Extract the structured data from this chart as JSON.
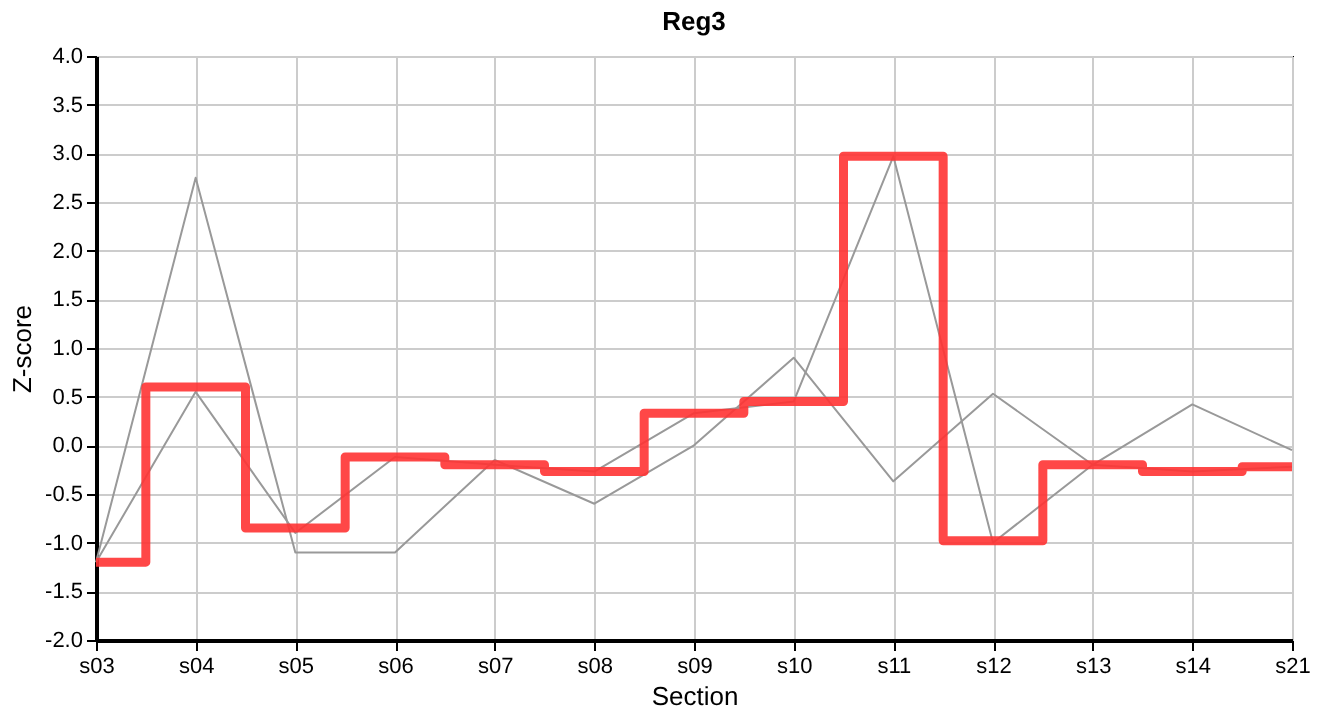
{
  "chart_data": {
    "type": "line",
    "title": "Reg3",
    "xlabel": "Section",
    "ylabel": "Z-score",
    "categories": [
      "s03",
      "s04",
      "s05",
      "s06",
      "s07",
      "s08",
      "s09",
      "s10",
      "s11",
      "s12",
      "s13",
      "s14",
      "s21"
    ],
    "series": [
      {
        "color": "#999999",
        "values": [
          -1.2,
          2.75,
          -1.1,
          -1.1,
          -0.15,
          -0.6,
          0.0,
          0.9,
          -0.37,
          0.53,
          -0.2,
          0.42,
          -0.05
        ]
      },
      {
        "color": "#999999",
        "values": [
          -1.2,
          0.55,
          -0.9,
          -0.12,
          -0.2,
          -0.27,
          0.33,
          0.45,
          2.97,
          -1.0,
          -0.2,
          -0.27,
          -0.22
        ]
      },
      {
        "type": "step",
        "color": "#ff3333",
        "values": [
          -1.2,
          0.6,
          -0.85,
          -0.12,
          -0.2,
          -0.27,
          0.33,
          0.45,
          2.97,
          -0.98,
          -0.2,
          -0.27,
          -0.22
        ]
      }
    ],
    "ylim": [
      -2,
      4
    ],
    "yticks": [
      {
        "value": -2,
        "label": "-2.0"
      },
      {
        "value": -1.5,
        "label": "-1.5"
      },
      {
        "value": -1,
        "label": "-1.0"
      },
      {
        "value": -0.5,
        "label": "-0.5"
      },
      {
        "value": 0,
        "label": "0.0"
      },
      {
        "value": 0.5,
        "label": "0.5"
      },
      {
        "value": 1,
        "label": "1.0"
      },
      {
        "value": 1.5,
        "label": "1.5"
      },
      {
        "value": 2,
        "label": "2.0"
      },
      {
        "value": 2.5,
        "label": "2.5"
      },
      {
        "value": 3,
        "label": "3.0"
      },
      {
        "value": 3.5,
        "label": "3.5"
      },
      {
        "value": 4,
        "label": "4.0"
      }
    ],
    "grid": true,
    "marker": "none",
    "line_style": "solid"
  }
}
